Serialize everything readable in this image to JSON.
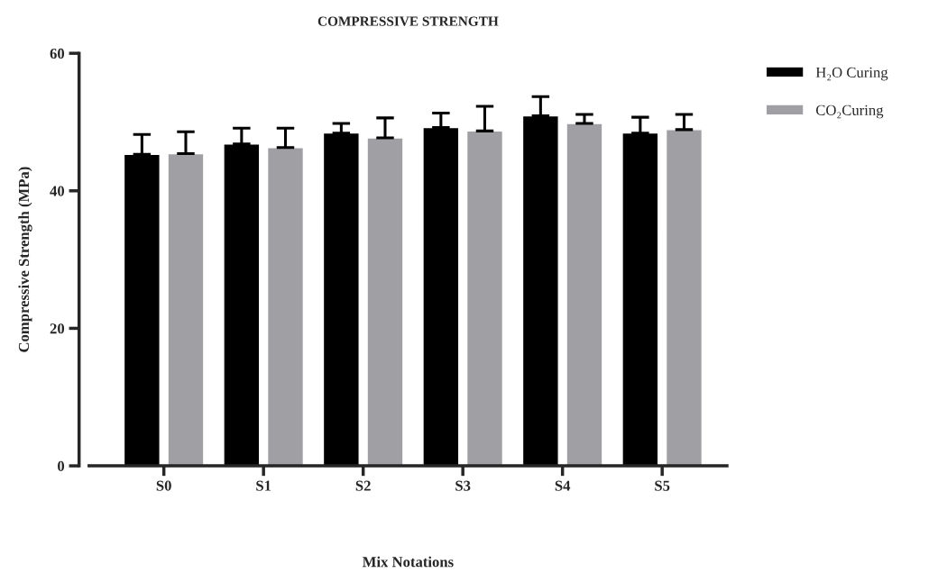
{
  "chart_data": {
    "type": "bar",
    "title": "COMPRESSIVE STRENGTH",
    "xlabel": "Mix Notations",
    "ylabel": "Compressive Strength (MPa)",
    "categories": [
      "S0",
      "S1",
      "S2",
      "S3",
      "S4",
      "S5"
    ],
    "series": [
      {
        "name": "H₂O Curing",
        "color": "#000000",
        "values": [
          45.3,
          46.8,
          48.4,
          49.2,
          50.9,
          48.4
        ],
        "errors": [
          [
            45.3,
            48.2
          ],
          [
            46.8,
            49.1
          ],
          [
            48.4,
            49.8
          ],
          [
            49.2,
            51.3
          ],
          [
            50.9,
            53.7
          ],
          [
            48.4,
            50.7
          ]
        ]
      },
      {
        "name": "CO₂Curing",
        "color": "#a0a0a4",
        "values": [
          45.4,
          46.3,
          47.7,
          48.7,
          49.8,
          48.9
        ],
        "errors": [
          [
            45.4,
            48.6
          ],
          [
            46.3,
            49.1
          ],
          [
            47.7,
            50.6
          ],
          [
            48.7,
            52.3
          ],
          [
            49.8,
            51.1
          ],
          [
            48.9,
            51.1
          ]
        ]
      }
    ],
    "ylim": [
      0,
      60
    ],
    "yticks": [
      0,
      20,
      40,
      60
    ],
    "grid": false,
    "legend": "right"
  }
}
